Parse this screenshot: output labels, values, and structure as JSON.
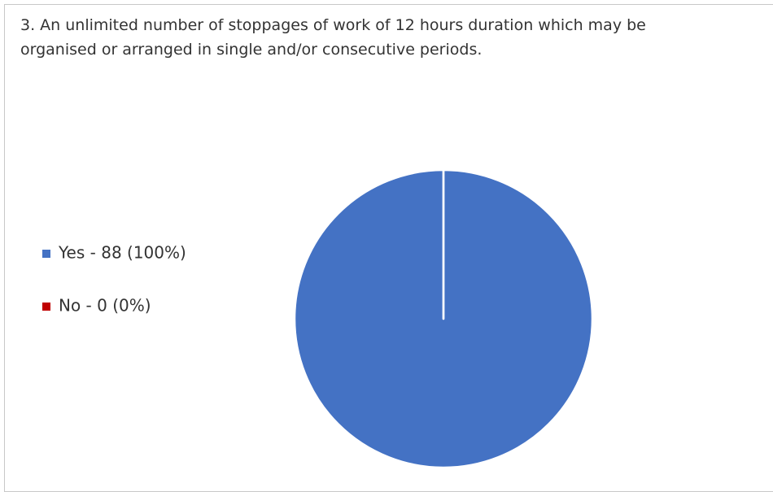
{
  "chart_data": {
    "type": "pie",
    "title": "3. An unlimited number of stoppages of work of 12 hours duration which may be organised or arranged in single and/or consecutive periods.",
    "categories": [
      "Yes - 88 (100%)",
      "No - 0 (0%)"
    ],
    "values": [
      88,
      0
    ],
    "colors": [
      "#4472c4",
      "#c00000"
    ],
    "legend": "left"
  }
}
